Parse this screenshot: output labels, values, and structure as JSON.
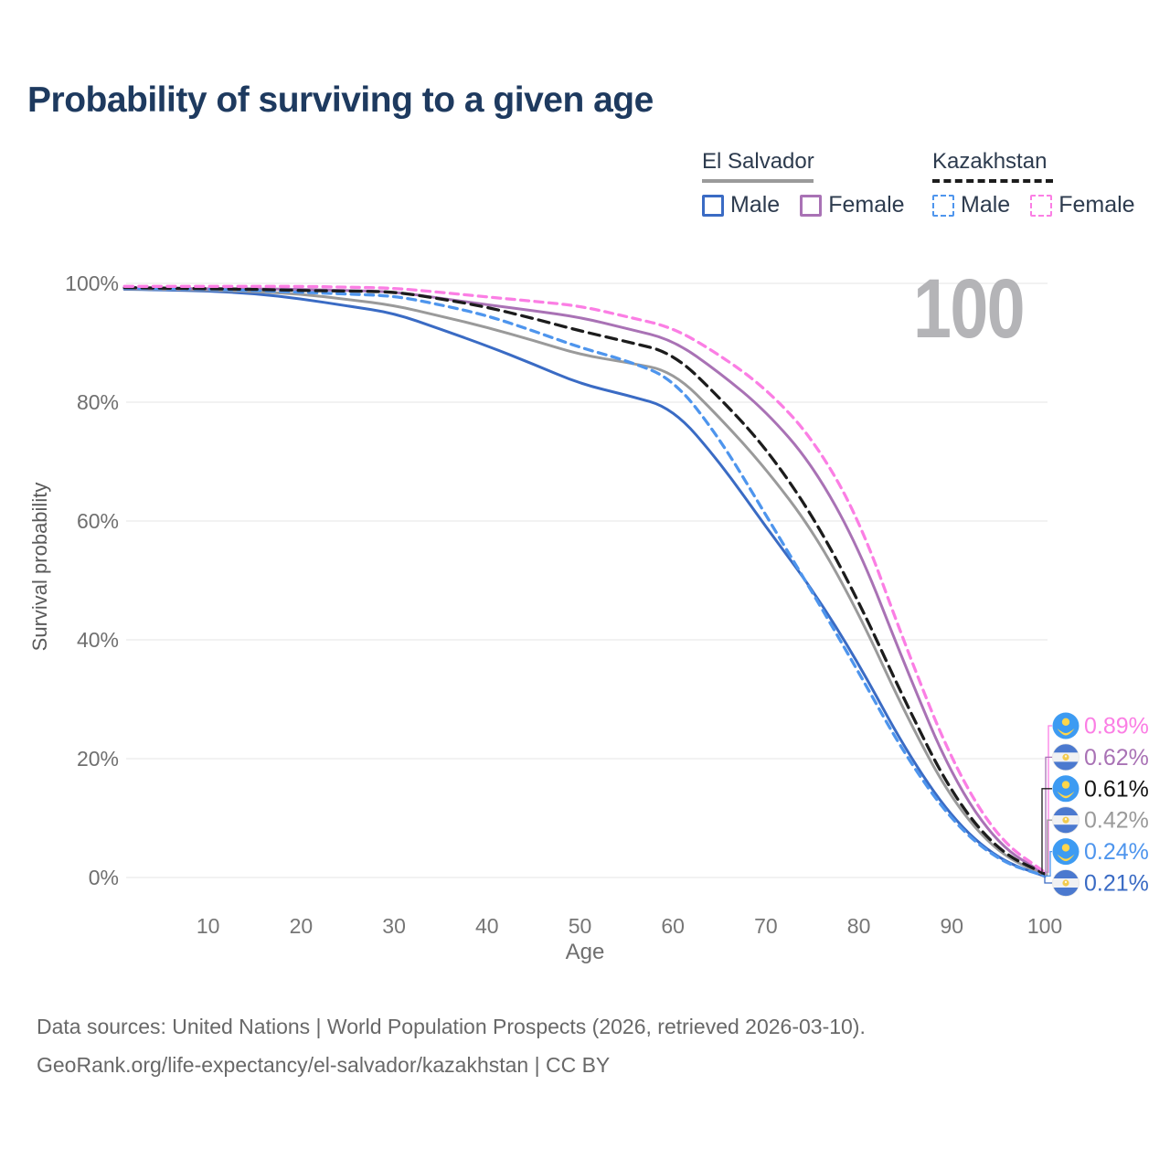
{
  "title": "Probability of surviving to a given age",
  "age_indicator": "100",
  "legend": {
    "groups": [
      {
        "name": "El Salvador",
        "line_style": "solid",
        "underline_color": "#9a9a9a",
        "items": [
          {
            "label": "Male",
            "color": "#3a6bc4",
            "dashed": false
          },
          {
            "label": "Female",
            "color": "#a972b5",
            "dashed": false
          }
        ]
      },
      {
        "name": "Kazakhstan",
        "line_style": "dashed",
        "underline_color": "#1c1c1c",
        "items": [
          {
            "label": "Male",
            "color": "#4e95ed",
            "dashed": true
          },
          {
            "label": "Female",
            "color": "#fb7ee4",
            "dashed": true
          }
        ]
      }
    ]
  },
  "chart_data": {
    "type": "line",
    "title": "Probability of surviving to a given age",
    "xlabel": "Age",
    "ylabel": "Survival probability",
    "xlim": [
      0,
      100
    ],
    "ylim": [
      0,
      100
    ],
    "grid": "horizontal",
    "x_tick_values": [
      10,
      20,
      30,
      40,
      50,
      60,
      70,
      80,
      90,
      100
    ],
    "x_tick_labels": [
      "10",
      "20",
      "30",
      "40",
      "50",
      "60",
      "70",
      "80",
      "90",
      "100"
    ],
    "y_tick_values": [
      0,
      20,
      40,
      60,
      80,
      100
    ],
    "y_tick_labels": [
      "0%",
      "20%",
      "40%",
      "60%",
      "80%",
      "100%"
    ],
    "ages": [
      1,
      5,
      10,
      15,
      20,
      25,
      30,
      35,
      40,
      45,
      50,
      55,
      60,
      65,
      70,
      75,
      80,
      85,
      90,
      95,
      100
    ],
    "series": [
      {
        "key": "sv_male",
        "name": "El Salvador Male",
        "country": "El Salvador",
        "sex": "Male",
        "style": "solid",
        "color": "#3a6bc4",
        "flag": "sv",
        "end_label": "0.21%",
        "end_value": 0.21,
        "values": [
          99.0,
          98.9,
          98.7,
          98.3,
          97.4,
          96.2,
          95.0,
          92.3,
          89.5,
          86.4,
          83.1,
          81.2,
          79.0,
          70.0,
          59.0,
          48.5,
          36.0,
          21.5,
          10.0,
          3.0,
          0.21
        ]
      },
      {
        "key": "sv_all",
        "name": "El Salvador",
        "country": "El Salvador",
        "sex": "Both",
        "style": "solid",
        "color": "#9a9a9a",
        "flag": "sv",
        "end_label": "0.42%",
        "end_value": 0.42,
        "values": [
          99.1,
          99.0,
          98.9,
          98.6,
          98.2,
          97.3,
          96.3,
          94.5,
          92.6,
          90.4,
          88.0,
          86.7,
          85.2,
          77.5,
          68.8,
          58.5,
          44.5,
          27.5,
          13.0,
          4.0,
          0.42
        ]
      },
      {
        "key": "sv_female",
        "name": "El Salvador Female",
        "country": "El Salvador",
        "sex": "Female",
        "style": "solid",
        "color": "#a972b5",
        "flag": "sv",
        "end_label": "0.62%",
        "end_value": 0.62,
        "values": [
          99.2,
          99.15,
          99.1,
          99.05,
          99.0,
          98.8,
          98.6,
          97.5,
          96.4,
          95.4,
          94.3,
          92.4,
          90.5,
          85.0,
          78.5,
          69.5,
          55.5,
          35.5,
          17.0,
          5.4,
          0.62
        ]
      },
      {
        "key": "kz_male",
        "name": "Kazakhstan Male",
        "country": "Kazakhstan",
        "sex": "Male",
        "style": "dashed",
        "color": "#4e95ed",
        "flag": "kz",
        "end_label": "0.24%",
        "end_value": 0.24,
        "values": [
          99.2,
          99.1,
          99.0,
          98.8,
          98.5,
          98.2,
          97.9,
          96.4,
          94.6,
          92.0,
          89.2,
          87.0,
          84.0,
          74.0,
          61.0,
          48.0,
          34.5,
          20.5,
          9.5,
          2.8,
          0.24
        ]
      },
      {
        "key": "kz_all",
        "name": "Kazakhstan",
        "country": "Kazakhstan",
        "sex": "Both",
        "style": "dashed",
        "color": "#1c1c1c",
        "flag": "kz",
        "end_label": "0.61%",
        "end_value": 0.61,
        "values": [
          99.3,
          99.2,
          99.1,
          99.0,
          98.8,
          98.7,
          98.6,
          97.4,
          96.0,
          94.1,
          92.0,
          90.2,
          88.3,
          80.8,
          72.3,
          61.0,
          46.5,
          29.5,
          14.0,
          4.4,
          0.61
        ]
      },
      {
        "key": "kz_female",
        "name": "Kazakhstan Female",
        "country": "Kazakhstan",
        "sex": "Female",
        "style": "dashed",
        "color": "#fb7ee4",
        "flag": "kz",
        "end_label": "0.89%",
        "end_value": 0.89,
        "values": [
          99.5,
          99.5,
          99.5,
          99.5,
          99.5,
          99.35,
          99.2,
          98.5,
          97.7,
          97.0,
          96.2,
          94.4,
          92.6,
          88.0,
          82.3,
          74.0,
          60.5,
          39.0,
          19.5,
          6.4,
          0.89
        ]
      }
    ],
    "end_labels": [
      {
        "series": "kz_female",
        "text": "0.89%"
      },
      {
        "series": "sv_female",
        "text": "0.62%"
      },
      {
        "series": "kz_all",
        "text": "0.61%",
        "text_color": "#151515"
      },
      {
        "series": "sv_all",
        "text": "0.42%"
      },
      {
        "series": "kz_male",
        "text": "0.24%"
      },
      {
        "series": "sv_male",
        "text": "0.21%"
      }
    ],
    "flag_colors": {
      "kz_circle": "#3d9bf2",
      "kz_emblem": "#ffd64a",
      "sv_stripe": "#4b79cf",
      "sv_band": "#f0f1f3",
      "sv_emblem": "#f2cb4e"
    }
  },
  "footer": {
    "line1": "Data sources: United Nations | World Population Prospects (2026, retrieved 2026-03-10).",
    "line2": "GeoRank.org/life-expectancy/el-salvador/kazakhstan | CC BY"
  }
}
